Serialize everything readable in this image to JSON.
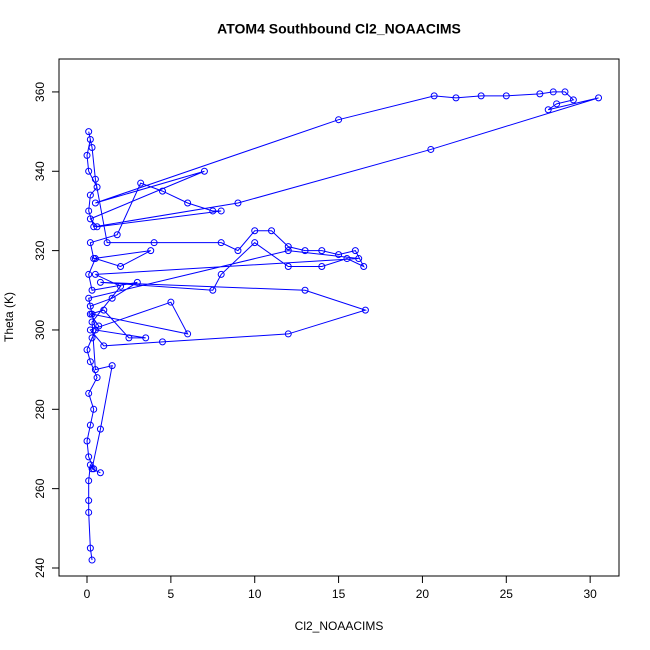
{
  "chart_data": {
    "type": "line",
    "title": "ATOM4 Southbound Cl2_NOAACIMS",
    "x_label": "Cl2_NOAACIMS",
    "y_label": "Theta (K)",
    "color": "#0000ff",
    "markers": true,
    "x": [
      0.3,
      0.2,
      0.1,
      0.1,
      0.1,
      0.2,
      0.4,
      0.1,
      0.0,
      0.2,
      0.4,
      0.1,
      0.6,
      0.2,
      0.0,
      0.3,
      0.7,
      0.2,
      1.0,
      2.5,
      3.5,
      0.5,
      0.2,
      1.5,
      3.0,
      0.3,
      0.1,
      0.5,
      2.0,
      3.8,
      0.4,
      0.2,
      1.8,
      3.2,
      4.5,
      6,
      7.5,
      8,
      0.6,
      0.2,
      7,
      0.5,
      15,
      20.7,
      22,
      23.5,
      25,
      27,
      27.8,
      28.5,
      29,
      28,
      27.5,
      30.5,
      20.5,
      9,
      0.4,
      0.1,
      0.2,
      0.6,
      0.1,
      0.0,
      0.2,
      0.1,
      0.3,
      0.5,
      1.2,
      4,
      8,
      9,
      10,
      11,
      12,
      13,
      14,
      15,
      16,
      16.5,
      15.5,
      14,
      12,
      10,
      8,
      7.5,
      0.8,
      13,
      16.6,
      12,
      4.5,
      1,
      0.2,
      5,
      6,
      0.3,
      0.1,
      12,
      16.2,
      0.5,
      2,
      0.3,
      0.5,
      1.5,
      0.8,
      0.3,
      0.8
    ],
    "values": [
      242,
      245,
      254,
      257,
      262,
      266,
      265,
      268,
      272,
      276,
      280,
      284,
      288,
      292,
      295,
      298,
      301,
      304,
      305,
      298,
      298,
      300,
      306,
      308,
      312,
      310,
      314,
      318,
      316,
      320,
      318,
      322,
      324,
      337,
      335,
      332,
      330,
      330,
      326,
      328,
      340,
      332,
      353,
      359,
      358.5,
      359,
      359,
      359.5,
      360,
      360,
      358,
      357,
      355.5,
      358.5,
      345.5,
      332,
      326,
      330,
      334,
      336,
      340,
      344,
      348,
      350,
      346,
      338,
      322,
      322,
      322,
      320,
      325,
      325,
      321,
      320,
      320,
      319,
      320,
      316,
      318,
      316,
      316,
      322,
      314,
      310,
      312,
      310,
      305,
      299,
      297,
      296,
      300,
      307,
      299,
      304,
      308,
      320,
      318,
      314,
      311,
      302,
      290,
      291,
      275,
      265,
      264
    ],
    "xlim": [
      -1.67,
      31.72
    ],
    "ylim": [
      237.98,
      368.3
    ],
    "xticks": [
      0,
      5,
      10,
      15,
      20,
      25,
      30
    ],
    "yticks": [
      240,
      260,
      280,
      300,
      320,
      340,
      360
    ]
  }
}
